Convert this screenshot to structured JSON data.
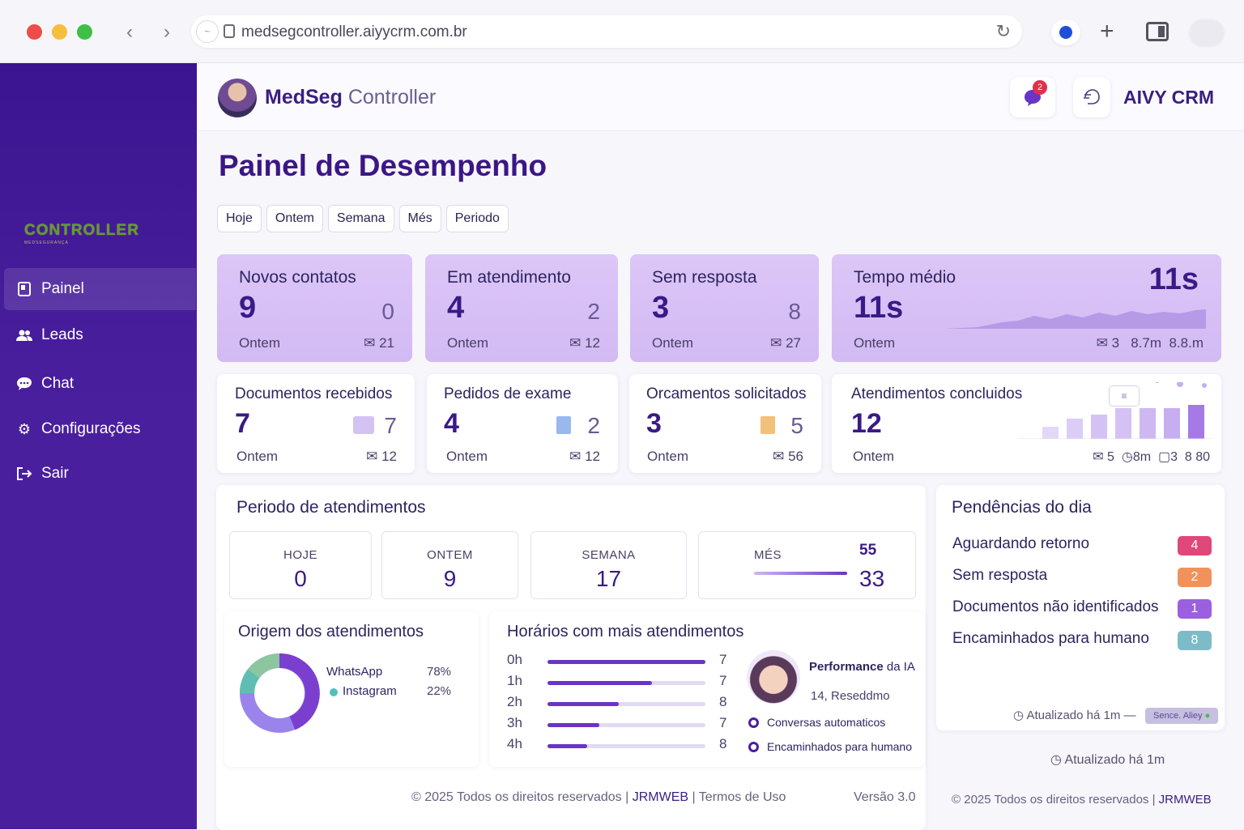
{
  "browser": {
    "url": "medsegcontroller.aiyycrm.com.br",
    "colors": {
      "close": "#ee4c4a",
      "minimize": "#f5be3d",
      "maximize": "#3ec046"
    }
  },
  "sidebar": {
    "logo_text": "CONTROLLER",
    "logo_sub": "MEDSEGURANÇA",
    "items": [
      {
        "label": "Painel",
        "icon": "dashboard-icon",
        "active": true
      },
      {
        "label": "Leads",
        "icon": "users-icon"
      },
      {
        "label": "Chat",
        "icon": "chat-icon"
      },
      {
        "label": "Configurações",
        "icon": "gear-icon"
      },
      {
        "label": "Sair",
        "icon": "logout-icon"
      }
    ]
  },
  "header": {
    "brand_bold": "MedSeg",
    "brand_light": "Controller",
    "notification_count": "2",
    "crm_label": "AIVY CRM"
  },
  "page": {
    "title": "Painel de Desempenho",
    "filters": [
      "Hoje",
      "Ontem",
      "Semana",
      "Més",
      "Periodo"
    ]
  },
  "kpis": [
    {
      "title": "Novos contatos",
      "value": "9",
      "side": "0",
      "sub": "Ontem",
      "meta": "21"
    },
    {
      "title": "Em atendimento",
      "value": "4",
      "side": "2",
      "sub": "Ontem",
      "meta": "12"
    },
    {
      "title": "Sem resposta",
      "value": "3",
      "side": "8",
      "sub": "Ontem",
      "meta": "27"
    },
    {
      "title": "Tempo médio",
      "value": "11s",
      "side": "11s",
      "sub": "Ontem",
      "meta1": "3",
      "meta2": "8.7m",
      "meta3": "8.8.m"
    }
  ],
  "kpis2": [
    {
      "title": "Documentos recebidos",
      "value": "7",
      "side": "7",
      "sub": "Ontem",
      "meta": "12",
      "icon": "document-icon"
    },
    {
      "title": "Pedidos de exame",
      "value": "4",
      "side": "2",
      "sub": "Ontem",
      "meta": "12",
      "icon": "file-icon"
    },
    {
      "title": "Orcamentos solicitados",
      "value": "3",
      "side": "5",
      "sub": "Ontem",
      "meta": "56",
      "icon": "clipboard-icon"
    },
    {
      "title": "Atendimentos concluidos",
      "value": "12",
      "sub": "Ontem",
      "meta1": "5",
      "meta2": "8m",
      "meta3": "3",
      "meta4": "8 80"
    }
  ],
  "period": {
    "title": "Periodo de atendimentos",
    "boxes": [
      {
        "label": "HOJE",
        "value": "0"
      },
      {
        "label": "ONTEM",
        "value": "9"
      },
      {
        "label": "SEMANA",
        "value": "17"
      },
      {
        "label": "MÉS",
        "value": "33",
        "extra": "55"
      }
    ]
  },
  "origem": {
    "title": "Origem dos atendimentos",
    "items": [
      {
        "label": "WhatsApp",
        "pct": "78%",
        "color": "#7b3fd0"
      },
      {
        "label": "Instagram",
        "pct": "22%",
        "color": "#4fc0b8"
      }
    ]
  },
  "horarios": {
    "title": "Horários com mais atendimentos",
    "rows": [
      {
        "label": "0h",
        "value": "7",
        "fill": 1.0
      },
      {
        "label": "1h",
        "value": "7",
        "fill": 0.66
      },
      {
        "label": "2h",
        "value": "8",
        "fill": 0.45
      },
      {
        "label": "3h",
        "value": "7",
        "fill": 0.33
      },
      {
        "label": "4h",
        "value": "8",
        "fill": 0.25
      }
    ],
    "ia_title_bold": "Performance",
    "ia_title_rest": "da IA",
    "ia_sub": "14, Reseddmo",
    "legend": [
      "Conversas automaticos",
      "Encaminhados para humano"
    ]
  },
  "pendencias": {
    "title": "Pendências do dia",
    "items": [
      {
        "label": "Aguardando retorno",
        "value": "4",
        "color": "#e0487a"
      },
      {
        "label": "Sem resposta",
        "value": "2",
        "color": "#f0925a"
      },
      {
        "label": "Documentos não identificados",
        "value": "1",
        "color": "#9b60e0"
      },
      {
        "label": "Encaminhados para humano",
        "value": "8",
        "color": "#7cbcc8"
      }
    ],
    "updated1": "Atualizado há 1m —",
    "updated_tag": "Sence. Aliey",
    "updated2": "Atualizado há 1m"
  },
  "footer": {
    "left_text": "2025 Todos os direitos reservados |",
    "left_brand": "JRMWEB",
    "left_terms": "| Termos de Uso",
    "version": "Versão 3.0",
    "right_text": "2025 Todos os direitos reservados |",
    "right_brand": "JRMWEB"
  }
}
